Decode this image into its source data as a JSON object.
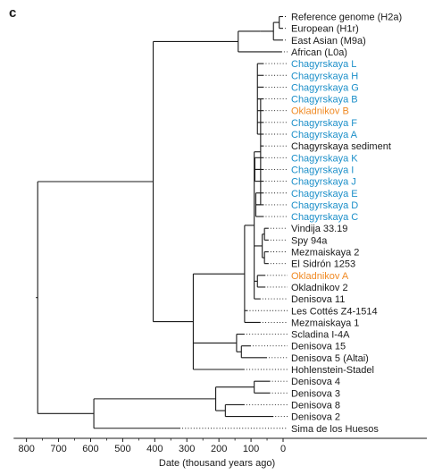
{
  "panel_label": "c",
  "axis": {
    "label": "Date (thousand years ago)",
    "ticks": [
      "800",
      "700",
      "600",
      "500",
      "400",
      "300",
      "200",
      "100",
      "0"
    ]
  },
  "colors": {
    "default": "#1a1a1a",
    "chagyrskaya": "#1c8fc9",
    "okladnikov": "#f08a24"
  },
  "tips": [
    {
      "label": "Reference genome (H2a)",
      "group": "default"
    },
    {
      "label": "European (H1r)",
      "group": "default"
    },
    {
      "label": "East Asian (M9a)",
      "group": "default"
    },
    {
      "label": "African (L0a)",
      "group": "default"
    },
    {
      "label": "Chagyrskaya L",
      "group": "chagyrskaya"
    },
    {
      "label": "Chagyrskaya H",
      "group": "chagyrskaya"
    },
    {
      "label": "Chagyrskaya G",
      "group": "chagyrskaya"
    },
    {
      "label": "Chagyrskaya B",
      "group": "chagyrskaya"
    },
    {
      "label": "Okladnikov B",
      "group": "okladnikov"
    },
    {
      "label": "Chagyrskaya F",
      "group": "chagyrskaya"
    },
    {
      "label": "Chagyrskaya A",
      "group": "chagyrskaya"
    },
    {
      "label": "Chagyrskaya sediment",
      "group": "default"
    },
    {
      "label": "Chagyrskaya K",
      "group": "chagyrskaya"
    },
    {
      "label": "Chagyrskaya I",
      "group": "chagyrskaya"
    },
    {
      "label": "Chagyrskaya J",
      "group": "chagyrskaya"
    },
    {
      "label": "Chagyrskaya E",
      "group": "chagyrskaya"
    },
    {
      "label": "Chagyrskaya D",
      "group": "chagyrskaya"
    },
    {
      "label": "Chagyrskaya C",
      "group": "chagyrskaya"
    },
    {
      "label": "Vindija 33.19",
      "group": "default"
    },
    {
      "label": "Spy 94a",
      "group": "default"
    },
    {
      "label": "Mezmaiskaya 2",
      "group": "default"
    },
    {
      "label": "El Sidrón 1253",
      "group": "default"
    },
    {
      "label": "Okladnikov A",
      "group": "okladnikov"
    },
    {
      "label": "Okladnikov 2",
      "group": "default"
    },
    {
      "label": "Denisova 11",
      "group": "default"
    },
    {
      "label": "Les Cottés Z4-1514",
      "group": "default"
    },
    {
      "label": "Mezmaiskaya 1",
      "group": "default"
    },
    {
      "label": "Scladina I-4A",
      "group": "default"
    },
    {
      "label": "Denisova 15",
      "group": "default"
    },
    {
      "label": "Denisova 5 (Altai)",
      "group": "default"
    },
    {
      "label": "Hohlenstein-Stadel",
      "group": "default"
    },
    {
      "label": "Denisova 4",
      "group": "default"
    },
    {
      "label": "Denisova 3",
      "group": "default"
    },
    {
      "label": "Denisova 8",
      "group": "default"
    },
    {
      "label": "Denisova 2",
      "group": "default"
    },
    {
      "label": "Sima de los Huesos",
      "group": "default"
    }
  ],
  "tree": {
    "date": 765,
    "children": [
      {
        "date": 405,
        "children": [
          {
            "date": 140,
            "children": [
              {
                "date": 3,
                "tip": 3
              },
              {
                "date": 70,
                "children": [
                  {
                    "date": 30,
                    "children": [
                      {
                        "date": 12,
                        "children": [
                          {
                            "date": 0,
                            "tip": 0
                          },
                          {
                            "date": 0,
                            "tip": 1
                          }
                        ]
                      },
                      {
                        "date": 0,
                        "tip": 2
                      }
                    ]
                  }
                ]
              }
            ]
          },
          {
            "date": 280,
            "children": [
              {
                "date": 120,
                "children": [
                  {
                    "date": 90,
                    "children": [
                      {
                        "date": 70,
                        "children": [
                          {
                            "date": 80,
                            "children": [
                              {
                                "date": 60,
                                "tip": 4
                              },
                              {
                                "date": 60,
                                "tip": 5
                              },
                              {
                                "date": 60,
                                "tip": 6
                              },
                              {
                                "date": 60,
                                "tip": 7
                              },
                              {
                                "date": 60,
                                "tip": 8
                              },
                              {
                                "date": 60,
                                "tip": 9
                              },
                              {
                                "date": 60,
                                "tip": 10
                              }
                            ]
                          },
                          {
                            "date": 60,
                            "tip": 11
                          },
                          {
                            "date": 88,
                            "children": [
                              {
                                "date": 60,
                                "tip": 12
                              },
                              {
                                "date": 60,
                                "tip": 13
                              },
                              {
                                "date": 60,
                                "tip": 14
                              }
                            ]
                          },
                          {
                            "date": 85,
                            "children": [
                              {
                                "date": 60,
                                "tip": 15
                              },
                              {
                                "date": 60,
                                "tip": 16
                              },
                              {
                                "date": 60,
                                "tip": 17
                              }
                            ]
                          }
                        ]
                      },
                      {
                        "date": 65,
                        "children": [
                          {
                            "date": 58,
                            "children": [
                              {
                                "date": 45,
                                "tip": 18
                              },
                              {
                                "date": 45,
                                "tip": 19
                              }
                            ]
                          },
                          {
                            "date": 58,
                            "children": [
                              {
                                "date": 45,
                                "tip": 20
                              },
                              {
                                "date": 45,
                                "tip": 21
                              }
                            ]
                          }
                        ]
                      },
                      {
                        "date": 80,
                        "children": [
                          {
                            "date": 55,
                            "tip": 22
                          },
                          {
                            "date": 55,
                            "tip": 23
                          }
                        ]
                      },
                      {
                        "date": 70,
                        "tip": 24
                      }
                    ]
                  },
                  {
                    "date": 110,
                    "tip": 25
                  },
                  {
                    "date": 70,
                    "tip": 26
                  }
                ]
              },
              {
                "date": 145,
                "children": [
                  {
                    "date": 120,
                    "tip": 27
                  },
                  {
                    "date": 130,
                    "children": [
                      {
                        "date": 100,
                        "tip": 28
                      },
                      {
                        "date": 50,
                        "tip": 29
                      }
                    ]
                  }
                ]
              },
              {
                "date": 120,
                "tip": 30
              }
            ]
          }
        ]
      },
      {
        "date": 590,
        "children": [
          {
            "date": 210,
            "children": [
              {
                "date": 90,
                "children": [
                  {
                    "date": 40,
                    "tip": 31
                  },
                  {
                    "date": 40,
                    "tip": 32
                  }
                ]
              },
              {
                "date": 180,
                "children": [
                  {
                    "date": 120,
                    "tip": 33
                  },
                  {
                    "date": 30,
                    "tip": 34
                  }
                ]
              }
            ]
          },
          {
            "date": 320,
            "tip": 35
          }
        ]
      }
    ]
  }
}
